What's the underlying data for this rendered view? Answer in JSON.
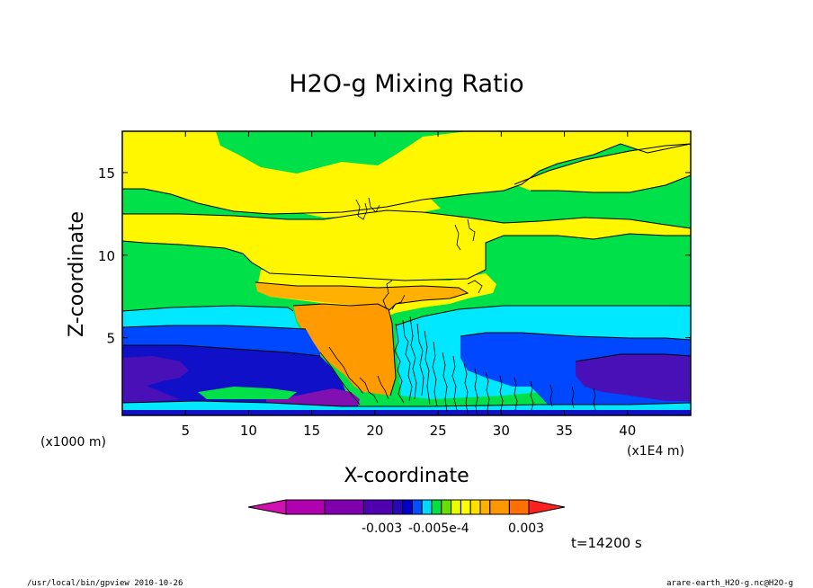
{
  "chart_data": {
    "type": "heatmap",
    "title": "H2O-g Mixing Ratio",
    "xlabel": "X-coordinate",
    "ylabel": "Z-coordinate",
    "x_unit_left": "(x1000 m)",
    "x_unit_right": "(x1E4 m)",
    "xlim": [
      0,
      45
    ],
    "ylim": [
      0.3,
      17.5
    ],
    "x_ticks": [
      "5",
      "10",
      "15",
      "20",
      "25",
      "30",
      "35",
      "40"
    ],
    "y_ticks": [
      "5",
      "10",
      "15"
    ],
    "colorbar": {
      "labels": [
        "-0.003",
        "-0.005e-4",
        "0.003"
      ],
      "colors": [
        "#d010b0",
        "#b000b0",
        "#8000b0",
        "#5000b0",
        "#2808b8",
        "#0000c8",
        "#0050ff",
        "#00d8ff",
        "#00e040",
        "#66e000",
        "#eaff00",
        "#ffff00",
        "#ffe000",
        "#ffb000",
        "#ff9800",
        "#ff7000",
        "#ff2020"
      ]
    },
    "levels": {
      "red": "#ff2020",
      "orange": "#ff9a00",
      "light_orange": "#ffb000",
      "yellow": "#fff700",
      "light_yellow": "#ffff60",
      "green": "#00e048",
      "cyan": "#00e8ff",
      "blue": "#0048ff",
      "dark_blue": "#1010c8",
      "indigo": "#4a10b8",
      "purple": "#8010b0",
      "magenta": "#c010b0"
    },
    "time_label": "t=14200 s"
  },
  "footer": {
    "left": "/usr/local/bin/gpview  2010-10-26",
    "right": "arare-earth_H2O-g.nc@H2O-g"
  }
}
